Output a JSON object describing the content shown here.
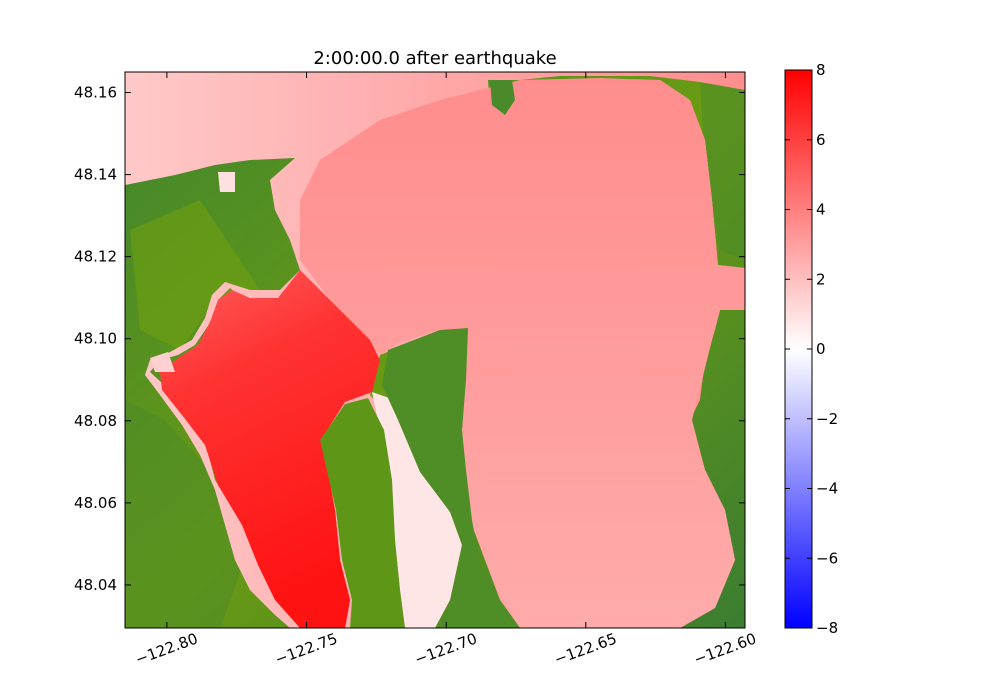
{
  "chart_data": {
    "type": "heatmap",
    "title": "2:00:00.0 after earthquake",
    "xlabel": "",
    "ylabel": "",
    "xlim": [
      -122.815,
      -122.593
    ],
    "ylim": [
      48.0295,
      48.165
    ],
    "x_ticks": [
      -122.8,
      -122.75,
      -122.7,
      -122.65,
      -122.6
    ],
    "x_tick_labels": [
      "−122.80",
      "−122.75",
      "−122.70",
      "−122.65",
      "−122.60"
    ],
    "y_ticks": [
      48.04,
      48.06,
      48.08,
      48.1,
      48.12,
      48.14,
      48.16
    ],
    "y_tick_labels": [
      "48.04",
      "48.06",
      "48.08",
      "48.10",
      "48.12",
      "48.14",
      "48.16"
    ],
    "colorbar": {
      "range": [
        -8,
        8
      ],
      "ticks": [
        8,
        6,
        4,
        2,
        0,
        -2,
        -4,
        -6,
        -8
      ],
      "tick_labels": [
        "8",
        "6",
        "4",
        "2",
        "0",
        "−2",
        "−4",
        "−6",
        "−8"
      ],
      "colors": [
        "#0000ff",
        "#ffffff",
        "#ff0000"
      ]
    },
    "colors": {
      "land_dark": "#3b7d32",
      "land_light": "#6e9e10",
      "water_high": "#ff1414",
      "water_mid": "#ff8f8f",
      "water_low": "#ffc7c7"
    }
  }
}
